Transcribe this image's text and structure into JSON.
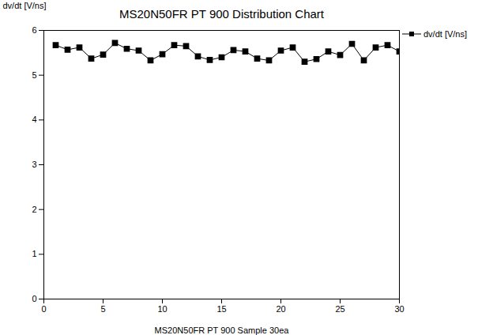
{
  "chart_data": {
    "type": "line",
    "title": "MS20N50FR PT 900 Distribution Chart",
    "xlabel": "MS20N50FR PT 900 Sample 30ea",
    "ylabel": "dv/dt [V/ns]",
    "x": [
      1,
      2,
      3,
      4,
      5,
      6,
      7,
      8,
      9,
      10,
      11,
      12,
      13,
      14,
      15,
      16,
      17,
      18,
      19,
      20,
      21,
      22,
      23,
      24,
      25,
      26,
      27,
      28,
      29,
      30
    ],
    "series": [
      {
        "name": "dv/dt [V/ns]",
        "color": "#000000",
        "marker": "square",
        "line_style": "solid",
        "values": [
          5.67,
          5.57,
          5.62,
          5.37,
          5.46,
          5.72,
          5.59,
          5.55,
          5.33,
          5.47,
          5.67,
          5.65,
          5.42,
          5.34,
          5.4,
          5.56,
          5.53,
          5.37,
          5.33,
          5.55,
          5.62,
          5.3,
          5.36,
          5.53,
          5.45,
          5.7,
          5.33,
          5.62,
          5.67,
          5.53
        ]
      }
    ],
    "xlim": [
      0,
      30
    ],
    "xticks": [
      0,
      5,
      10,
      15,
      20,
      25,
      30
    ],
    "ylim": [
      0,
      6
    ],
    "yticks": [
      0,
      1,
      2,
      3,
      4,
      5,
      6
    ],
    "grid": false,
    "legend": "top-right"
  }
}
